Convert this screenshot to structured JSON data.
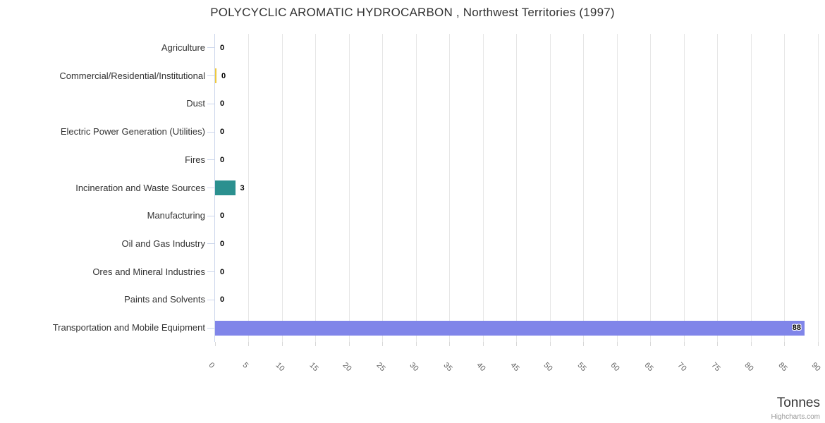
{
  "chart": {
    "title": "POLYCYCLIC AROMATIC HYDROCARBON , Northwest Territories (1997)",
    "x_axis_title": "Tonnes",
    "credits": "Highcharts.com"
  },
  "colors": {
    "grid": "#e6e6e6",
    "axis_line": "#ccd6eb",
    "category_tick": "#ccd6eb",
    "bottom_tick": "#d8d8d8",
    "title_text": "#333333",
    "category_label_text": "#333333",
    "tick_label_text": "#666666",
    "data_label_text": "#000000",
    "axis_title_text": "#333333",
    "credits_text": "#999999"
  },
  "chart_data": {
    "type": "bar",
    "orientation": "horizontal",
    "title": "POLYCYCLIC AROMATIC HYDROCARBON , Northwest Territories (1997)",
    "xlabel": "Tonnes",
    "ylabel": "",
    "xlim": [
      0,
      90
    ],
    "x_ticks": [
      0,
      5,
      10,
      15,
      20,
      25,
      30,
      35,
      40,
      45,
      50,
      55,
      60,
      65,
      70,
      75,
      80,
      85,
      90
    ],
    "tick_label_rotation_deg": 45,
    "grid": true,
    "legend": false,
    "categories": [
      "Agriculture",
      "Commercial/Residential/Institutional",
      "Dust",
      "Electric Power Generation (Utilities)",
      "Fires",
      "Incineration and Waste Sources",
      "Manufacturing",
      "Oil and Gas Industry",
      "Ores and Mineral Industries",
      "Paints and Solvents",
      "Transportation and Mobile Equipment"
    ],
    "values": [
      0,
      0.2,
      0,
      0,
      0,
      3,
      0,
      0,
      0,
      0,
      88
    ],
    "data_labels": [
      "0",
      "0",
      "0",
      "0",
      "0",
      "3",
      "0",
      "0",
      "0",
      "0",
      "88"
    ],
    "bar_colors": [
      "#7cb5ec",
      "#eec93e",
      "#7cb5ec",
      "#7cb5ec",
      "#7cb5ec",
      "#2b908f",
      "#7cb5ec",
      "#7cb5ec",
      "#7cb5ec",
      "#7cb5ec",
      "#8085e9"
    ]
  }
}
